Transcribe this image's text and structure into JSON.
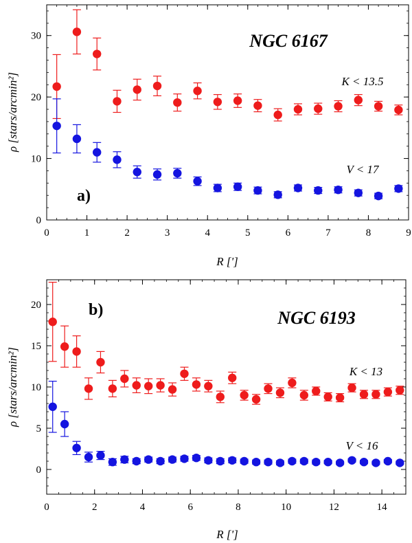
{
  "chart_data": [
    {
      "type": "scatter",
      "panel_label": "a)",
      "annotation": "NGC 6167",
      "xlabel": "R [']",
      "ylabel": "ρ [stars/arcmin²]",
      "xlim": [
        0,
        9
      ],
      "ylim": [
        0,
        35
      ],
      "xticks": [
        0,
        1,
        2,
        3,
        4,
        5,
        6,
        7,
        8,
        9
      ],
      "yticks": [
        0,
        10,
        20,
        30
      ],
      "series": [
        {
          "name": "K < 13.5",
          "color": "#ee1c1c",
          "x": [
            0.25,
            0.75,
            1.25,
            1.75,
            2.25,
            2.75,
            3.25,
            3.75,
            4.25,
            4.75,
            5.25,
            5.75,
            6.25,
            6.75,
            7.25,
            7.75,
            8.25,
            8.75
          ],
          "y": [
            21.7,
            30.6,
            27.0,
            19.3,
            21.2,
            21.8,
            19.1,
            21.0,
            19.2,
            19.4,
            18.6,
            17.1,
            18.0,
            18.1,
            18.5,
            19.5,
            18.5,
            17.9
          ],
          "err": [
            5.2,
            3.6,
            2.6,
            1.8,
            1.7,
            1.6,
            1.4,
            1.3,
            1.2,
            1.1,
            1.0,
            1.0,
            0.9,
            0.9,
            0.9,
            0.9,
            0.8,
            0.8
          ]
        },
        {
          "name": "V < 17",
          "color": "#1414e0",
          "x": [
            0.25,
            0.75,
            1.25,
            1.75,
            2.25,
            2.75,
            3.25,
            3.75,
            4.25,
            4.75,
            5.25,
            5.75,
            6.25,
            6.75,
            7.25,
            7.75,
            8.25,
            8.75
          ],
          "y": [
            15.3,
            13.2,
            11.0,
            9.8,
            7.8,
            7.4,
            7.6,
            6.3,
            5.2,
            5.4,
            4.8,
            4.1,
            5.2,
            4.8,
            4.9,
            4.4,
            3.9,
            5.1
          ],
          "err": [
            4.4,
            2.3,
            1.6,
            1.3,
            1.0,
            0.9,
            0.8,
            0.7,
            0.6,
            0.6,
            0.55,
            0.5,
            0.5,
            0.5,
            0.5,
            0.5,
            0.45,
            0.5
          ]
        }
      ]
    },
    {
      "type": "scatter",
      "panel_label": "b)",
      "annotation": "NGC 6193",
      "xlabel": "R [']",
      "ylabel": "ρ [stars/arcmin²]",
      "xlim": [
        0,
        15
      ],
      "ylim": [
        -3,
        23
      ],
      "xticks": [
        0,
        2,
        4,
        6,
        8,
        10,
        12,
        14
      ],
      "yticks": [
        0,
        5,
        10,
        15,
        20
      ],
      "series": [
        {
          "name": "K < 13",
          "color": "#ee1c1c",
          "x": [
            0.25,
            0.75,
            1.25,
            1.75,
            2.25,
            2.75,
            3.25,
            3.75,
            4.25,
            4.75,
            5.25,
            5.75,
            6.25,
            6.75,
            7.25,
            7.75,
            8.25,
            8.75,
            9.25,
            9.75,
            10.25,
            10.75,
            11.25,
            11.75,
            12.25,
            12.75,
            13.25,
            13.75,
            14.25,
            14.75
          ],
          "y": [
            17.9,
            14.9,
            14.3,
            9.8,
            13.0,
            9.8,
            11.0,
            10.2,
            10.1,
            10.2,
            9.7,
            11.6,
            10.3,
            10.1,
            8.8,
            11.1,
            9.0,
            8.5,
            9.8,
            9.3,
            10.5,
            9.0,
            9.5,
            8.8,
            8.7,
            9.9,
            9.1,
            9.1,
            9.4,
            9.6
          ],
          "err": [
            4.8,
            2.5,
            1.9,
            1.3,
            1.3,
            1.0,
            1.0,
            0.9,
            0.9,
            0.8,
            0.8,
            0.8,
            0.8,
            0.7,
            0.7,
            0.7,
            0.6,
            0.6,
            0.6,
            0.6,
            0.6,
            0.6,
            0.5,
            0.5,
            0.5,
            0.5,
            0.5,
            0.5,
            0.5,
            0.5
          ]
        },
        {
          "name": "V < 16",
          "color": "#1414e0",
          "x": [
            0.25,
            0.75,
            1.25,
            1.75,
            2.25,
            2.75,
            3.25,
            3.75,
            4.25,
            4.75,
            5.25,
            5.75,
            6.25,
            6.75,
            7.25,
            7.75,
            8.25,
            8.75,
            9.25,
            9.75,
            10.25,
            10.75,
            11.25,
            11.75,
            12.25,
            12.75,
            13.25,
            13.75,
            14.25,
            14.75
          ],
          "y": [
            7.6,
            5.5,
            2.6,
            1.5,
            1.7,
            0.9,
            1.2,
            1.0,
            1.2,
            1.0,
            1.2,
            1.3,
            1.4,
            1.1,
            1.0,
            1.1,
            1.0,
            0.9,
            0.9,
            0.8,
            1.0,
            1.0,
            0.9,
            0.9,
            0.8,
            1.1,
            0.9,
            0.8,
            1.0,
            0.8
          ],
          "err": [
            3.1,
            1.5,
            0.8,
            0.6,
            0.5,
            0.4,
            0.4,
            0.3,
            0.3,
            0.3,
            0.3,
            0.3,
            0.3,
            0.3,
            0.3,
            0.3,
            0.25,
            0.25,
            0.25,
            0.25,
            0.25,
            0.25,
            0.25,
            0.2,
            0.2,
            0.2,
            0.2,
            0.2,
            0.2,
            0.2
          ]
        }
      ]
    }
  ]
}
